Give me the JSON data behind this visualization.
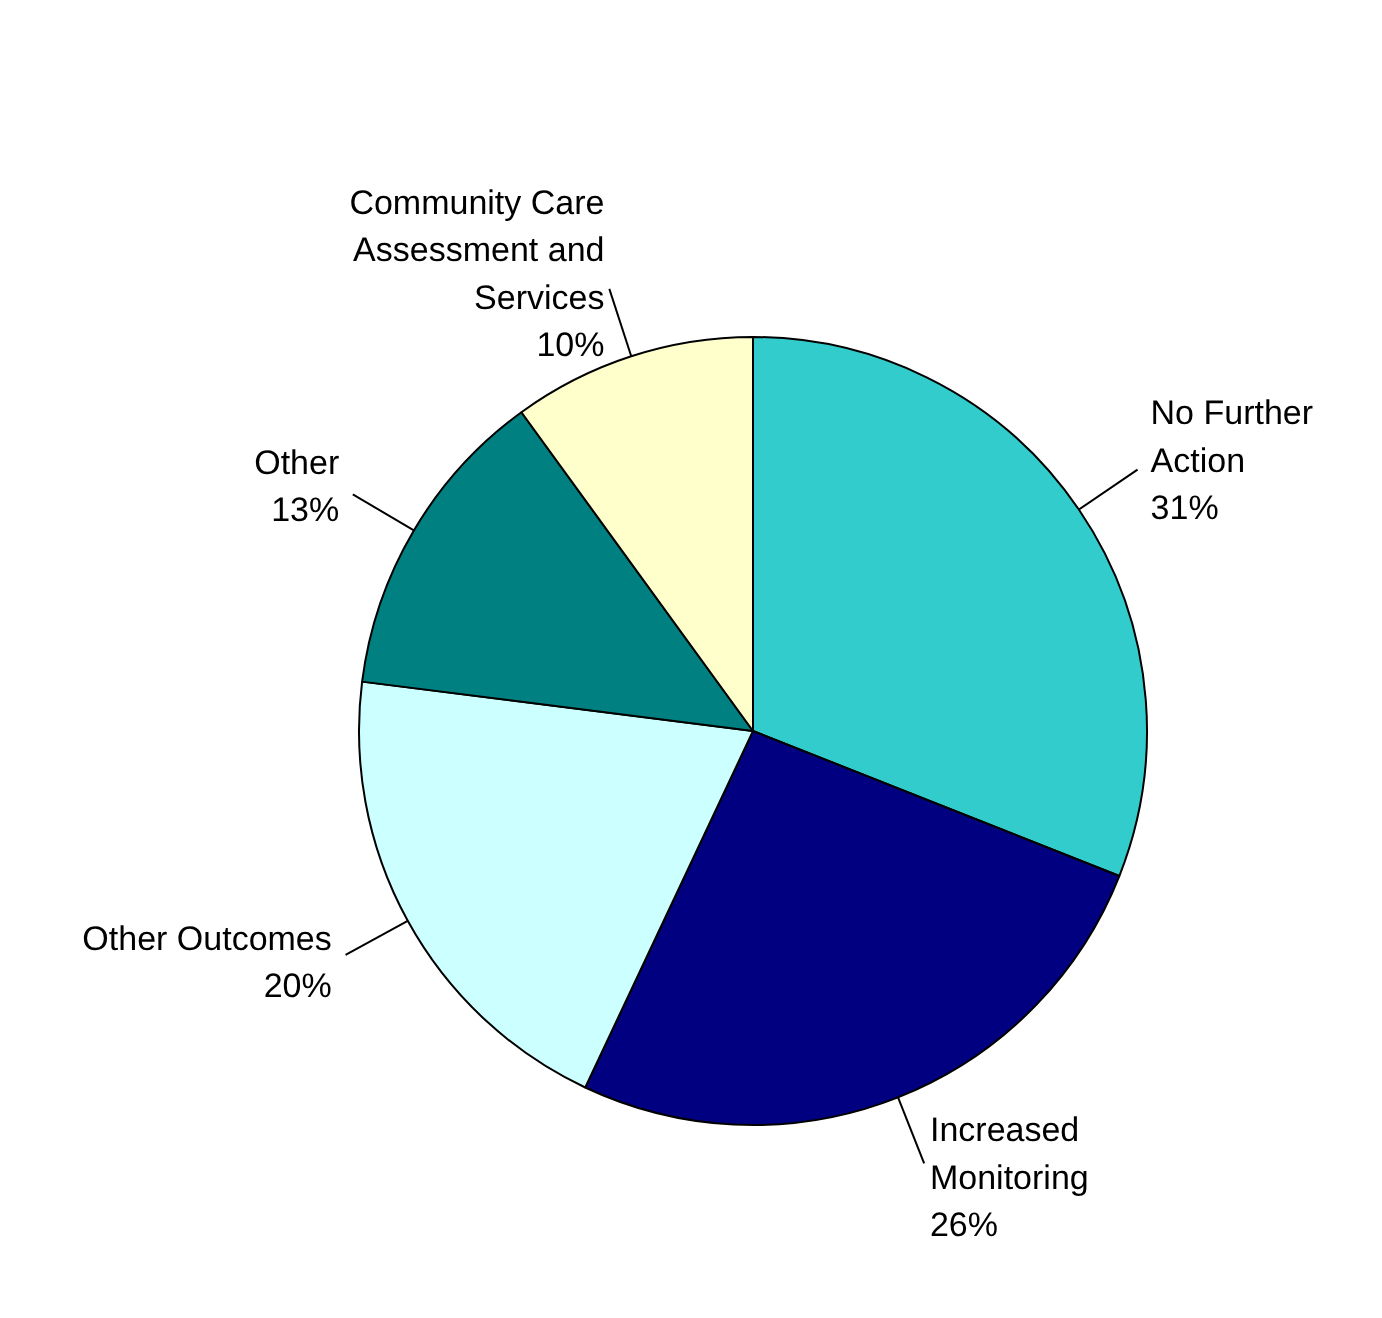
{
  "chart_data": {
    "type": "pie",
    "categories": [
      "No Further Action",
      "Increased Monitoring",
      "Other Outcomes",
      "Other",
      "Community Care Assessment and Services"
    ],
    "values": [
      31,
      26,
      20,
      13,
      10
    ],
    "value_labels": [
      "31%",
      "26%",
      "20%",
      "13%",
      "10%"
    ],
    "colors": [
      "#33cccc",
      "#000080",
      "#ccffff",
      "#008080",
      "#ffffcc"
    ]
  }
}
